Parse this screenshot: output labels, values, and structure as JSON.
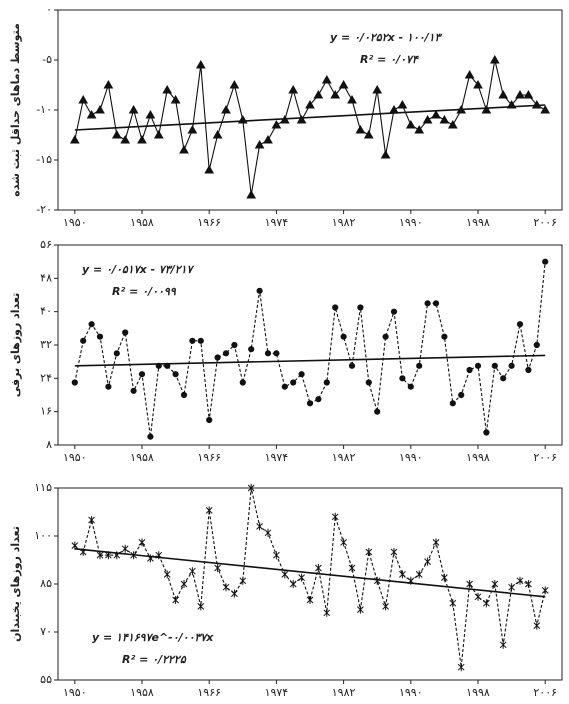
{
  "chart_data": [
    {
      "type": "line",
      "marker": "triangle",
      "line_style": "solid",
      "ylabel": "متوسط دماهای حداقل ثبت شده",
      "equation": "y = ۰/۰۲۵۲x - ۱۰۰/۱۳",
      "r2": "R² = ۰/۰۷۴",
      "x": [
        1950,
        1951,
        1952,
        1953,
        1954,
        1955,
        1956,
        1957,
        1958,
        1959,
        1960,
        1961,
        1962,
        1963,
        1964,
        1965,
        1966,
        1967,
        1968,
        1969,
        1970,
        1971,
        1972,
        1973,
        1974,
        1975,
        1976,
        1977,
        1978,
        1979,
        1980,
        1981,
        1982,
        1983,
        1984,
        1985,
        1986,
        1987,
        1988,
        1989,
        1990,
        1991,
        1992,
        1993,
        1994,
        1995,
        1996,
        1997,
        1998,
        1999,
        2000,
        2001,
        2002,
        2003,
        2004,
        2005,
        2006
      ],
      "values": [
        -13,
        -9,
        -10.5,
        -10,
        -7.5,
        -12.5,
        -13,
        -10,
        -13,
        -10.5,
        -12.5,
        -8,
        -9,
        -14,
        -12,
        -5.5,
        -16,
        -12.5,
        -10,
        -7.5,
        -11,
        -18.5,
        -13.5,
        -13,
        -11.5,
        -11,
        -8,
        -11,
        -9.5,
        -8.5,
        -7,
        -8.5,
        -7.5,
        -9,
        -12,
        -12.5,
        -8,
        -14.5,
        -10,
        -9.5,
        -11.5,
        -12,
        -11,
        -10.5,
        -11,
        -11.5,
        -10,
        -6.5,
        -7.5,
        -10,
        -5,
        -8.5,
        -9.5,
        -8.5,
        -8.5,
        -9.5,
        -10
      ],
      "trendline": [
        -12,
        -9.5
      ],
      "color": "#111",
      "xlim": [
        1948,
        2008
      ],
      "xticks": [
        {
          "value": 1950,
          "label": "۱۹۵۰"
        },
        {
          "value": 1958,
          "label": "۱۹۵۸"
        },
        {
          "value": 1966,
          "label": "۱۹۶۶"
        },
        {
          "value": 1974,
          "label": "۱۹۷۴"
        },
        {
          "value": 1982,
          "label": "۱۹۸۲"
        },
        {
          "value": 1990,
          "label": "۱۹۹۰"
        },
        {
          "value": 1998,
          "label": "۱۹۹۸"
        },
        {
          "value": 2006,
          "label": "۲۰۰۶"
        }
      ],
      "ylim": [
        -20,
        0
      ],
      "yticks": [
        {
          "value": -20,
          "label": "-۲۰"
        },
        {
          "value": -15,
          "label": "-۱۵"
        },
        {
          "value": -10,
          "label": "-۱۰"
        },
        {
          "value": -5,
          "label": "-۵"
        },
        {
          "value": 0,
          "label": "۰"
        }
      ]
    },
    {
      "type": "line",
      "marker": "circle",
      "line_style": "dotted",
      "ylabel": "تعداد روزهای برفی",
      "equation": "y = ۰/۰۵۱۷x - ۷۳/۲۱۷",
      "r2": "R² = ۰/۰۰۹۹",
      "x": [
        1950,
        1951,
        1952,
        1953,
        1954,
        1955,
        1956,
        1957,
        1958,
        1959,
        1960,
        1961,
        1962,
        1963,
        1964,
        1965,
        1966,
        1967,
        1968,
        1969,
        1970,
        1971,
        1972,
        1973,
        1974,
        1975,
        1976,
        1977,
        1978,
        1979,
        1980,
        1981,
        1982,
        1983,
        1984,
        1985,
        1986,
        1987,
        1988,
        1989,
        1990,
        1991,
        1992,
        1993,
        1994,
        1995,
        1996,
        1997,
        1998,
        1999,
        2000,
        2001,
        2002,
        2003,
        2004,
        2005,
        2006
      ],
      "values": [
        23,
        33,
        37,
        34,
        22,
        30,
        35,
        21,
        25,
        10,
        27,
        27,
        25,
        20,
        33,
        33,
        14,
        29,
        30,
        32,
        23,
        31,
        45,
        30,
        30,
        22,
        23,
        25,
        18,
        19,
        23,
        41,
        34,
        27,
        41,
        23,
        16,
        34,
        40,
        24,
        22,
        27,
        42,
        42,
        34,
        18,
        20,
        26,
        27,
        11,
        27,
        24,
        27,
        37,
        26,
        32,
        52
      ],
      "trendline": [
        27,
        29.5
      ],
      "color": "#111",
      "xlim": [
        1948,
        2008
      ],
      "xticks": [
        {
          "value": 1950,
          "label": "۱۹۵۰"
        },
        {
          "value": 1958,
          "label": "۱۹۵۸"
        },
        {
          "value": 1966,
          "label": "۱۹۶۶"
        },
        {
          "value": 1974,
          "label": "۱۹۷۴"
        },
        {
          "value": 1982,
          "label": "۱۹۸۲"
        },
        {
          "value": 1990,
          "label": "۱۹۹۰"
        },
        {
          "value": 1998,
          "label": "۱۹۹۸"
        },
        {
          "value": 2006,
          "label": "۲۰۰۶"
        }
      ],
      "ylim": [
        8,
        56
      ],
      "yticks": [
        {
          "value": 8,
          "label": "۸"
        },
        {
          "value": 16,
          "label": "۱۶"
        },
        {
          "value": 24,
          "label": "۲۴"
        },
        {
          "value": 32,
          "label": "۳۲"
        },
        {
          "value": 40,
          "label": "۴۰"
        },
        {
          "value": 48,
          "label": "۴۸"
        },
        {
          "value": 56,
          "label": "۵۶"
        }
      ]
    },
    {
      "type": "line",
      "marker": "asterisk",
      "line_style": "dotted",
      "ylabel": "تعداد روزهای یخبندان",
      "equation": "y = ۱۴۱۶۹۷e^-۰/۰۰۳۷x",
      "r2": "R² = ۰/۲۲۲۵",
      "x": [
        1950,
        1951,
        1952,
        1953,
        1954,
        1955,
        1956,
        1957,
        1958,
        1959,
        1960,
        1961,
        1962,
        1963,
        1964,
        1965,
        1966,
        1967,
        1968,
        1969,
        1970,
        1971,
        1972,
        1973,
        1974,
        1975,
        1976,
        1977,
        1978,
        1979,
        1980,
        1981,
        1982,
        1983,
        1984,
        1985,
        1986,
        1987,
        1988,
        1989,
        1990,
        1991,
        1992,
        1993,
        1994,
        1995,
        1996,
        1997,
        1998,
        1999,
        2000,
        2001,
        2002,
        2003,
        2004,
        2005,
        2006
      ],
      "values": [
        97,
        95,
        105,
        94,
        94,
        94,
        96,
        94,
        98,
        93,
        94,
        88,
        80,
        85,
        89,
        78,
        108,
        90,
        84,
        82,
        86,
        115,
        103,
        101,
        94,
        88,
        85,
        87,
        80,
        90,
        76,
        106,
        98,
        90,
        77,
        95,
        86,
        78,
        95,
        88,
        86,
        88,
        92,
        98,
        87,
        79,
        59,
        85,
        81,
        79,
        85,
        66,
        84,
        86,
        85,
        72,
        83
      ],
      "trendline": [
        96,
        81
      ],
      "color": "#111",
      "xlim": [
        1948,
        2008
      ],
      "xticks": [
        {
          "value": 1950,
          "label": "۱۹۵۰"
        },
        {
          "value": 1958,
          "label": "۱۹۵۸"
        },
        {
          "value": 1966,
          "label": "۱۹۶۶"
        },
        {
          "value": 1974,
          "label": "۱۹۷۴"
        },
        {
          "value": 1982,
          "label": "۱۹۸۲"
        },
        {
          "value": 1990,
          "label": "۱۹۹۰"
        },
        {
          "value": 1998,
          "label": "۱۹۹۸"
        },
        {
          "value": 2006,
          "label": "۲۰۰۶"
        }
      ],
      "ylim": [
        55,
        115
      ],
      "yticks": [
        {
          "value": 55,
          "label": "۵۵"
        },
        {
          "value": 70,
          "label": "۷۰"
        },
        {
          "value": 85,
          "label": "۸۵"
        },
        {
          "value": 100,
          "label": "۱۰۰"
        },
        {
          "value": 115,
          "label": "۱۱۵"
        }
      ]
    }
  ]
}
